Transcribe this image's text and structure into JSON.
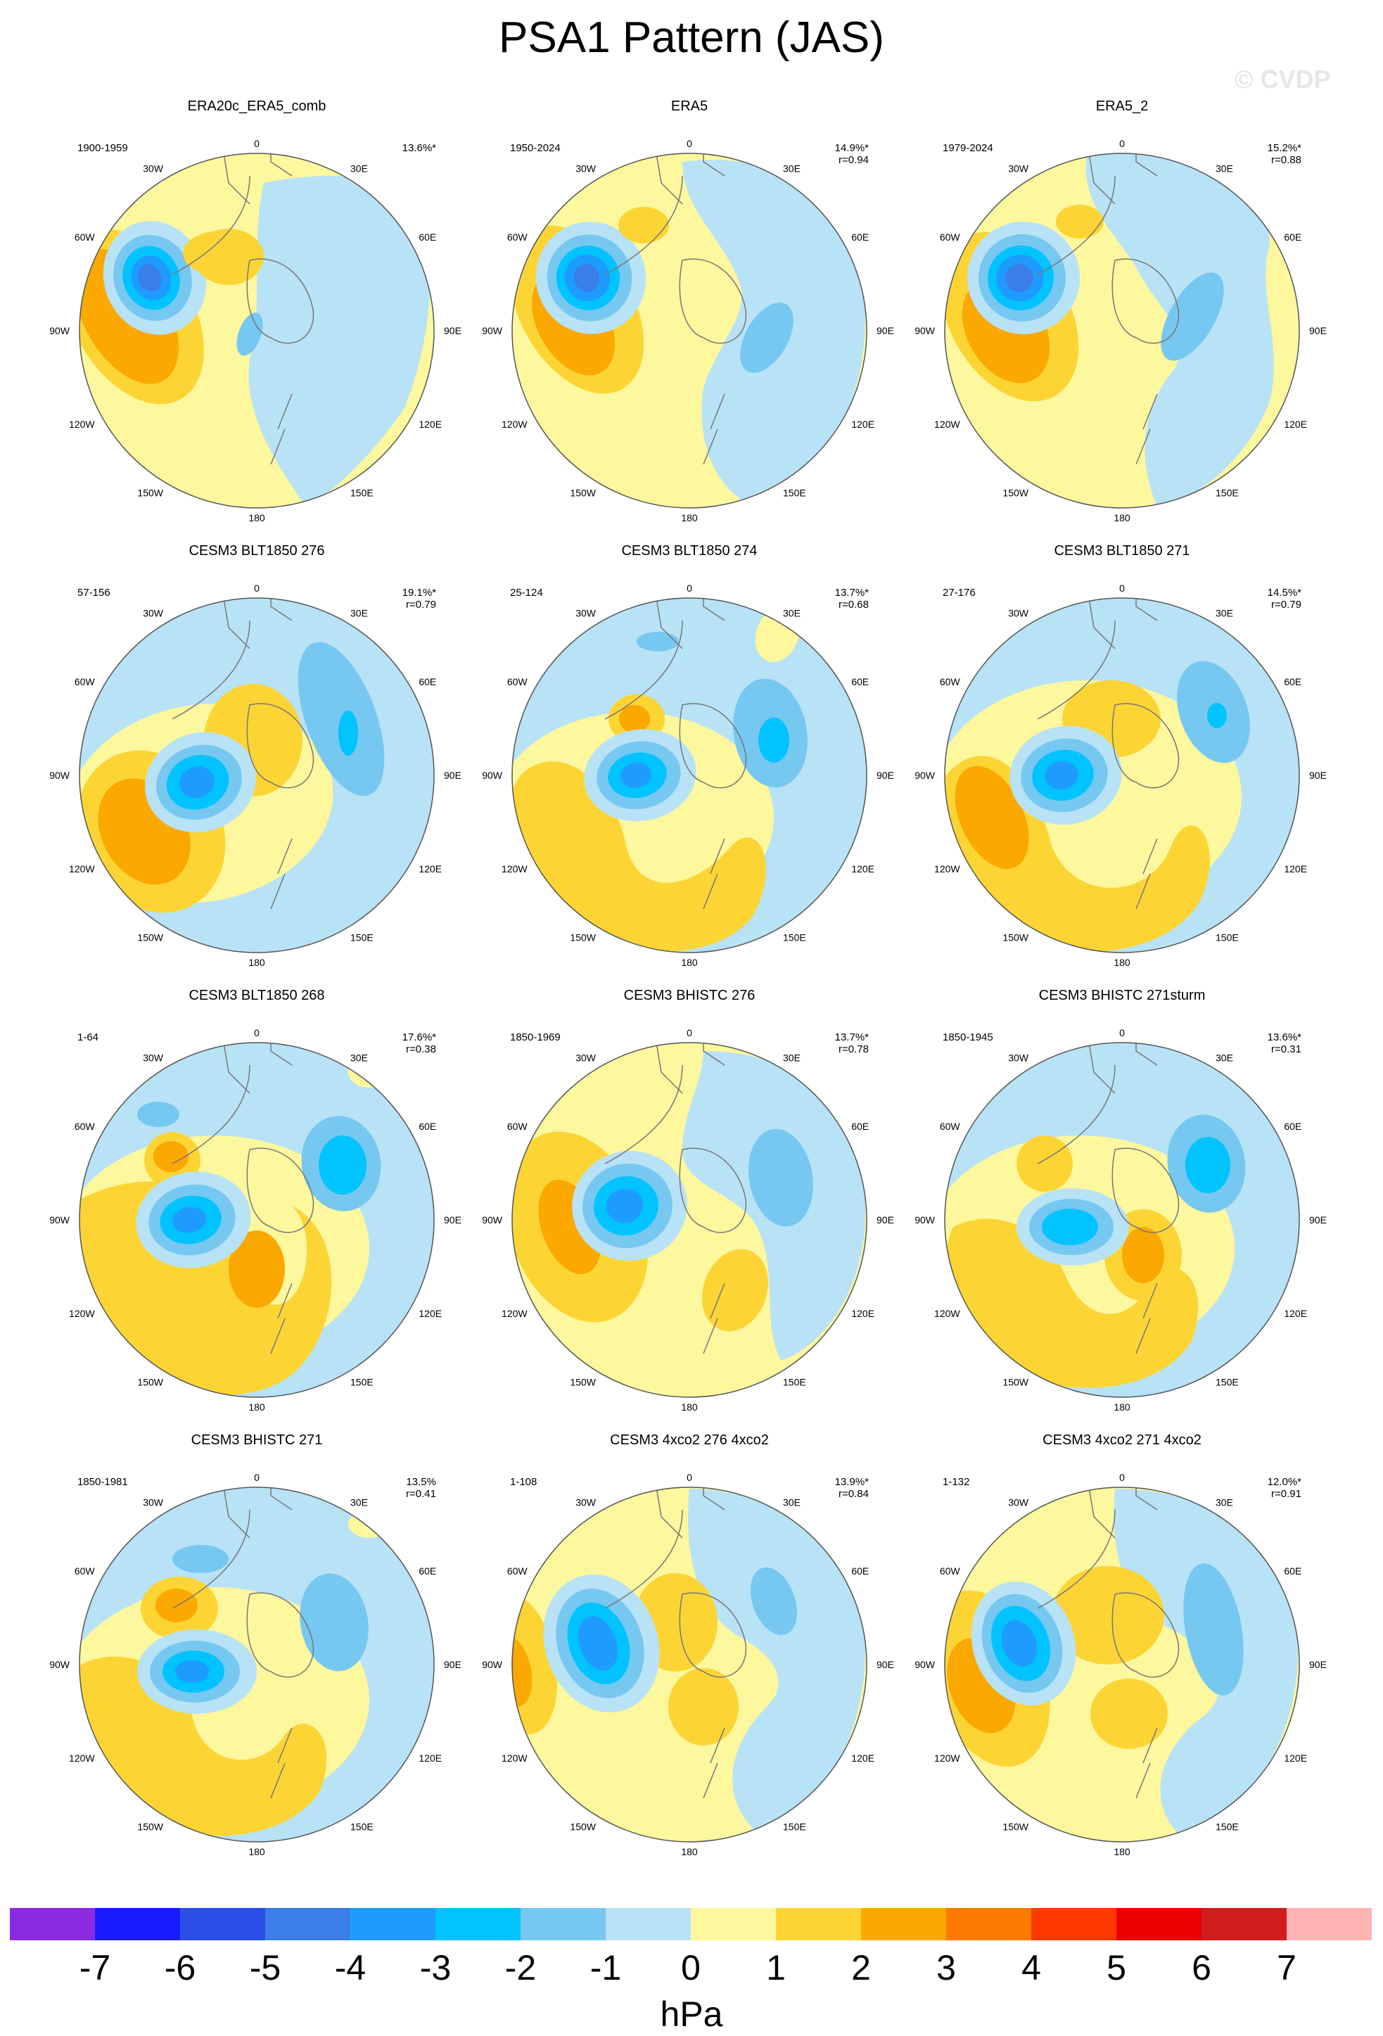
{
  "title": "PSA1 Pattern (JAS)",
  "watermark": "© CVDP",
  "lon_labels": [
    "0",
    "30E",
    "60E",
    "90E",
    "120E",
    "150E",
    "180",
    "150W",
    "120W",
    "90W",
    "60W",
    "30W"
  ],
  "panels": [
    {
      "name": "ERA20c_ERA5_comb",
      "years": "1900-1959",
      "pct": "13.6%*",
      "r": ""
    },
    {
      "name": "ERA5",
      "years": "1950-2024",
      "pct": "14.9%*",
      "r": "r=0.94"
    },
    {
      "name": "ERA5_2",
      "years": "1979-2024",
      "pct": "15.2%*",
      "r": "r=0.88"
    },
    {
      "name": "CESM3 BLT1850 276",
      "years": "57-156",
      "pct": "19.1%*",
      "r": "r=0.79"
    },
    {
      "name": "CESM3 BLT1850 274",
      "years": "25-124",
      "pct": "13.7%*",
      "r": "r=0.68"
    },
    {
      "name": "CESM3 BLT1850 271",
      "years": "27-176",
      "pct": "14.5%*",
      "r": "r=0.79"
    },
    {
      "name": "CESM3 BLT1850 268",
      "years": "1-64",
      "pct": "17.6%*",
      "r": "r=0.38"
    },
    {
      "name": "CESM3 BHISTC 276",
      "years": "1850-1969",
      "pct": "13.7%*",
      "r": "r=0.78"
    },
    {
      "name": "CESM3 BHISTC 271sturm",
      "years": "1850-1945",
      "pct": "13.6%*",
      "r": "r=0.31"
    },
    {
      "name": "CESM3 BHISTC 271",
      "years": "1850-1981",
      "pct": "13.5%",
      "r": "r=0.41"
    },
    {
      "name": "CESM3 4xco2 276 4xco2",
      "years": "1-108",
      "pct": "13.9%*",
      "r": "r=0.84"
    },
    {
      "name": "CESM3 4xco2 271 4xco2",
      "years": "1-132",
      "pct": "12.0%*",
      "r": "r=0.91"
    }
  ],
  "colorbar": {
    "units": "hPa",
    "labels": [
      "-7",
      "-6",
      "-5",
      "-4",
      "-3",
      "-2",
      "-1",
      "0",
      "1",
      "2",
      "3",
      "4",
      "5",
      "6",
      "7"
    ],
    "colors": [
      "#8a2be2",
      "#1a1aff",
      "#2b4ee6",
      "#3a7ee8",
      "#1e9bff",
      "#00c3ff",
      "#76c8f0",
      "#b8e2f6",
      "#fdf79e",
      "#fcd535",
      "#fba800",
      "#fc7a00",
      "#ff3a00",
      "#ec0000",
      "#d21c1c",
      "#ffb4b4"
    ]
  },
  "palette": {
    "weak_neg": "#b8e2f6",
    "neg1": "#76c8f0",
    "neg2": "#00c3ff",
    "neg3": "#1e9bff",
    "neg4": "#3a7ee8",
    "neg5": "#2b4ee6",
    "weak_pos": "#fdf79e",
    "pos1": "#fcd535",
    "pos2": "#fba800",
    "pos3": "#fc7a00"
  }
}
